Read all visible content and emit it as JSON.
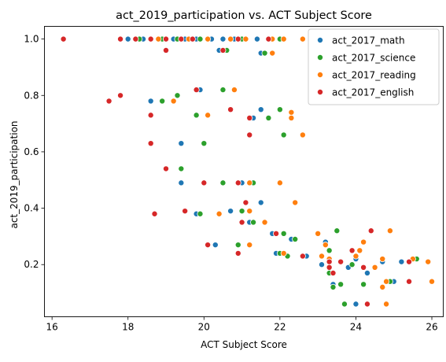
{
  "chart_data": {
    "type": "scatter",
    "title": "act_2019_participation vs. ACT Subject Score",
    "xlabel": "ACT Subject Score",
    "ylabel": "act_2019_participation",
    "xlim": [
      15.8,
      26.3
    ],
    "ylim": [
      0.015,
      1.045
    ],
    "xticks": [
      16,
      18,
      20,
      22,
      24,
      26
    ],
    "yticks": [
      0.2,
      0.4,
      0.6,
      0.8,
      1.0
    ],
    "xtick_labels": [
      "16",
      "18",
      "20",
      "22",
      "24",
      "26"
    ],
    "ytick_labels": [
      "0.2",
      "0.4",
      "0.6",
      "0.8",
      "1.0"
    ],
    "grid": false,
    "legend_position": "top-right",
    "series": [
      {
        "name": "act_2017_math",
        "color": "#1f77b4",
        "points": [
          {
            "x": 18.0,
            "y": 1.0
          },
          {
            "x": 18.4,
            "y": 1.0
          },
          {
            "x": 18.8,
            "y": 1.0
          },
          {
            "x": 19.2,
            "y": 1.0
          },
          {
            "x": 19.5,
            "y": 1.0
          },
          {
            "x": 19.8,
            "y": 1.0
          },
          {
            "x": 20.2,
            "y": 1.0
          },
          {
            "x": 20.5,
            "y": 1.0
          },
          {
            "x": 20.8,
            "y": 1.0
          },
          {
            "x": 21.4,
            "y": 1.0
          },
          {
            "x": 20.4,
            "y": 0.96
          },
          {
            "x": 21.5,
            "y": 0.95
          },
          {
            "x": 19.9,
            "y": 0.82
          },
          {
            "x": 18.6,
            "y": 0.78
          },
          {
            "x": 21.5,
            "y": 0.75
          },
          {
            "x": 21.3,
            "y": 0.72
          },
          {
            "x": 21.2,
            "y": 0.66
          },
          {
            "x": 19.4,
            "y": 0.63
          },
          {
            "x": 19.4,
            "y": 0.49
          },
          {
            "x": 21.0,
            "y": 0.49
          },
          {
            "x": 21.5,
            "y": 0.42
          },
          {
            "x": 20.7,
            "y": 0.39
          },
          {
            "x": 19.8,
            "y": 0.38
          },
          {
            "x": 21.2,
            "y": 0.35
          },
          {
            "x": 20.3,
            "y": 0.27
          },
          {
            "x": 21.8,
            "y": 0.31
          },
          {
            "x": 22.3,
            "y": 0.29
          },
          {
            "x": 22.7,
            "y": 0.23
          },
          {
            "x": 21.9,
            "y": 0.24
          },
          {
            "x": 23.2,
            "y": 0.28
          },
          {
            "x": 23.1,
            "y": 0.2
          },
          {
            "x": 23.4,
            "y": 0.13
          },
          {
            "x": 23.8,
            "y": 0.19
          },
          {
            "x": 24.0,
            "y": 0.22
          },
          {
            "x": 24.0,
            "y": 0.06
          },
          {
            "x": 24.7,
            "y": 0.21
          },
          {
            "x": 25.0,
            "y": 0.14
          },
          {
            "x": 25.2,
            "y": 0.21
          },
          {
            "x": 23.3,
            "y": 0.21
          },
          {
            "x": 24.3,
            "y": 0.17
          }
        ]
      },
      {
        "name": "act_2017_science",
        "color": "#2ca02c",
        "points": [
          {
            "x": 18.3,
            "y": 1.0
          },
          {
            "x": 18.9,
            "y": 1.0
          },
          {
            "x": 19.3,
            "y": 1.0
          },
          {
            "x": 19.9,
            "y": 1.0
          },
          {
            "x": 20.6,
            "y": 0.96
          },
          {
            "x": 21.0,
            "y": 1.0
          },
          {
            "x": 21.6,
            "y": 0.95
          },
          {
            "x": 22.0,
            "y": 1.0
          },
          {
            "x": 19.3,
            "y": 0.8
          },
          {
            "x": 18.9,
            "y": 0.78
          },
          {
            "x": 20.5,
            "y": 0.82
          },
          {
            "x": 19.8,
            "y": 0.73
          },
          {
            "x": 21.7,
            "y": 0.72
          },
          {
            "x": 22.0,
            "y": 0.75
          },
          {
            "x": 22.1,
            "y": 0.66
          },
          {
            "x": 20.0,
            "y": 0.63
          },
          {
            "x": 19.4,
            "y": 0.54
          },
          {
            "x": 20.5,
            "y": 0.49
          },
          {
            "x": 21.3,
            "y": 0.49
          },
          {
            "x": 19.9,
            "y": 0.38
          },
          {
            "x": 21.0,
            "y": 0.39
          },
          {
            "x": 21.3,
            "y": 0.35
          },
          {
            "x": 22.1,
            "y": 0.31
          },
          {
            "x": 20.9,
            "y": 0.27
          },
          {
            "x": 22.2,
            "y": 0.23
          },
          {
            "x": 22.4,
            "y": 0.29
          },
          {
            "x": 23.3,
            "y": 0.25
          },
          {
            "x": 23.5,
            "y": 0.32
          },
          {
            "x": 23.3,
            "y": 0.17
          },
          {
            "x": 23.6,
            "y": 0.13
          },
          {
            "x": 23.7,
            "y": 0.06
          },
          {
            "x": 23.9,
            "y": 0.2
          },
          {
            "x": 24.2,
            "y": 0.13
          },
          {
            "x": 24.9,
            "y": 0.14
          },
          {
            "x": 25.4,
            "y": 0.21
          },
          {
            "x": 24.7,
            "y": 0.22
          },
          {
            "x": 25.6,
            "y": 0.22
          },
          {
            "x": 23.4,
            "y": 0.12
          },
          {
            "x": 24.3,
            "y": 0.06
          },
          {
            "x": 22.0,
            "y": 0.24
          }
        ]
      },
      {
        "name": "act_2017_reading",
        "color": "#ff7f0e",
        "points": [
          {
            "x": 18.8,
            "y": 1.0
          },
          {
            "x": 19.0,
            "y": 1.0
          },
          {
            "x": 19.6,
            "y": 1.0
          },
          {
            "x": 20.1,
            "y": 1.0
          },
          {
            "x": 20.7,
            "y": 1.0
          },
          {
            "x": 21.1,
            "y": 1.0
          },
          {
            "x": 21.8,
            "y": 1.0
          },
          {
            "x": 22.1,
            "y": 1.0
          },
          {
            "x": 22.6,
            "y": 1.0
          },
          {
            "x": 21.8,
            "y": 0.95
          },
          {
            "x": 19.2,
            "y": 0.78
          },
          {
            "x": 20.1,
            "y": 0.73
          },
          {
            "x": 20.8,
            "y": 0.82
          },
          {
            "x": 22.3,
            "y": 0.74
          },
          {
            "x": 22.3,
            "y": 0.72
          },
          {
            "x": 22.6,
            "y": 0.66
          },
          {
            "x": 21.2,
            "y": 0.49
          },
          {
            "x": 22.0,
            "y": 0.49
          },
          {
            "x": 22.4,
            "y": 0.42
          },
          {
            "x": 21.2,
            "y": 0.39
          },
          {
            "x": 20.4,
            "y": 0.38
          },
          {
            "x": 21.6,
            "y": 0.35
          },
          {
            "x": 21.2,
            "y": 0.27
          },
          {
            "x": 22.1,
            "y": 0.24
          },
          {
            "x": 23.0,
            "y": 0.31
          },
          {
            "x": 23.2,
            "y": 0.27
          },
          {
            "x": 23.1,
            "y": 0.23
          },
          {
            "x": 24.0,
            "y": 0.23
          },
          {
            "x": 24.2,
            "y": 0.28
          },
          {
            "x": 24.1,
            "y": 0.25
          },
          {
            "x": 24.5,
            "y": 0.19
          },
          {
            "x": 24.7,
            "y": 0.22
          },
          {
            "x": 24.7,
            "y": 0.12
          },
          {
            "x": 24.9,
            "y": 0.32
          },
          {
            "x": 24.8,
            "y": 0.06
          },
          {
            "x": 25.5,
            "y": 0.22
          },
          {
            "x": 25.9,
            "y": 0.21
          },
          {
            "x": 26.0,
            "y": 0.14
          },
          {
            "x": 23.3,
            "y": 0.22
          },
          {
            "x": 24.8,
            "y": 0.14
          }
        ]
      },
      {
        "name": "act_2017_english",
        "color": "#d62728",
        "points": [
          {
            "x": 16.3,
            "y": 1.0
          },
          {
            "x": 17.8,
            "y": 1.0
          },
          {
            "x": 18.2,
            "y": 1.0
          },
          {
            "x": 18.6,
            "y": 1.0
          },
          {
            "x": 19.0,
            "y": 1.0
          },
          {
            "x": 19.4,
            "y": 1.0
          },
          {
            "x": 19.7,
            "y": 1.0
          },
          {
            "x": 20.9,
            "y": 1.0
          },
          {
            "x": 21.7,
            "y": 1.0
          },
          {
            "x": 20.5,
            "y": 0.96
          },
          {
            "x": 19.0,
            "y": 0.96
          },
          {
            "x": 19.8,
            "y": 0.82
          },
          {
            "x": 17.5,
            "y": 0.78
          },
          {
            "x": 17.8,
            "y": 0.8
          },
          {
            "x": 18.6,
            "y": 0.73
          },
          {
            "x": 20.7,
            "y": 0.75
          },
          {
            "x": 21.2,
            "y": 0.72
          },
          {
            "x": 21.2,
            "y": 0.66
          },
          {
            "x": 18.6,
            "y": 0.63
          },
          {
            "x": 19.0,
            "y": 0.54
          },
          {
            "x": 20.0,
            "y": 0.49
          },
          {
            "x": 20.9,
            "y": 0.49
          },
          {
            "x": 19.5,
            "y": 0.39
          },
          {
            "x": 18.7,
            "y": 0.38
          },
          {
            "x": 21.1,
            "y": 0.42
          },
          {
            "x": 21.0,
            "y": 0.35
          },
          {
            "x": 20.1,
            "y": 0.27
          },
          {
            "x": 20.9,
            "y": 0.24
          },
          {
            "x": 21.9,
            "y": 0.31
          },
          {
            "x": 22.6,
            "y": 0.23
          },
          {
            "x": 23.3,
            "y": 0.21
          },
          {
            "x": 23.3,
            "y": 0.19
          },
          {
            "x": 23.4,
            "y": 0.17
          },
          {
            "x": 23.6,
            "y": 0.21
          },
          {
            "x": 23.9,
            "y": 0.25
          },
          {
            "x": 24.2,
            "y": 0.19
          },
          {
            "x": 24.3,
            "y": 0.06
          },
          {
            "x": 24.4,
            "y": 0.32
          },
          {
            "x": 25.4,
            "y": 0.14
          },
          {
            "x": 25.4,
            "y": 0.21
          }
        ]
      }
    ]
  }
}
